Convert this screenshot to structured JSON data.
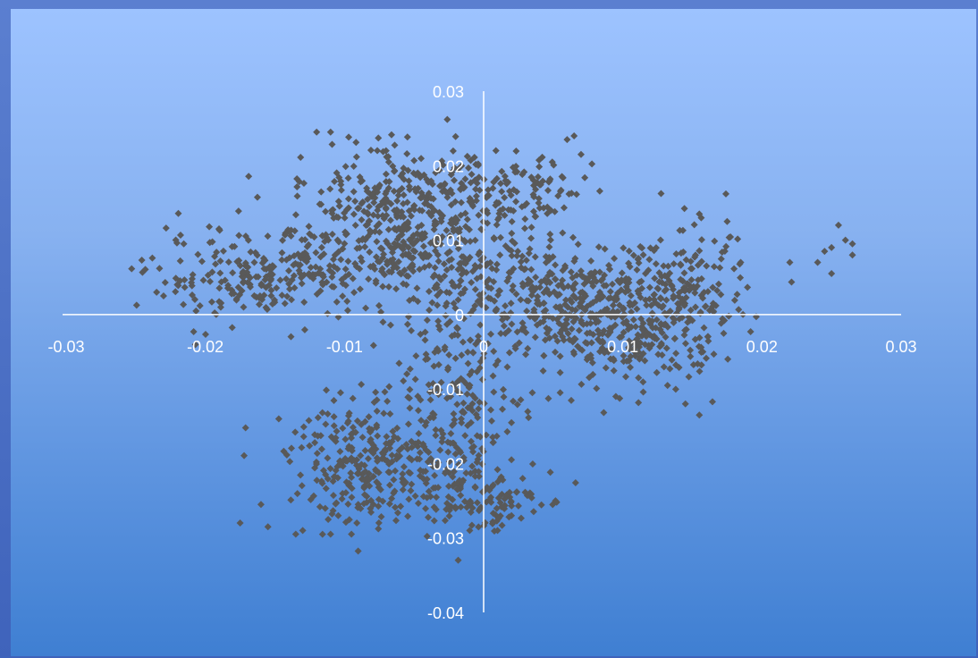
{
  "chart_data": {
    "type": "scatter",
    "title": "",
    "xlabel": "",
    "ylabel": "",
    "xlim": [
      -0.03,
      0.03
    ],
    "ylim": [
      -0.04,
      0.03
    ],
    "x_ticks": [
      "-0.03",
      "-0.02",
      "-0.01",
      "0",
      "0.01",
      "0.02",
      "0.03"
    ],
    "y_ticks": [
      "0.03",
      "0.02",
      "0.01",
      "0",
      "-0.01",
      "-0.02",
      "-0.03",
      "-0.04"
    ],
    "grid": false,
    "legend": "none",
    "marker_color": "#595959",
    "axis_color": "#ffffff",
    "clusters": [
      {
        "cx": -0.006,
        "cy": 0.012,
        "sx": 0.004,
        "sy": 0.004,
        "n": 330
      },
      {
        "cx": -0.006,
        "cy": 0.018,
        "sx": 0.003,
        "sy": 0.0035,
        "n": 80
      },
      {
        "cx": -0.016,
        "cy": 0.005,
        "sx": 0.004,
        "sy": 0.003,
        "n": 230
      },
      {
        "cx": 0.006,
        "cy": 0.002,
        "sx": 0.004,
        "sy": 0.004,
        "n": 330
      },
      {
        "cx": 0.011,
        "cy": -0.002,
        "sx": 0.003,
        "sy": 0.004,
        "n": 230
      },
      {
        "cx": 0.015,
        "cy": 0.003,
        "sx": 0.002,
        "sy": 0.004,
        "n": 120
      },
      {
        "cx": 0.002,
        "cy": 0.016,
        "sx": 0.003,
        "sy": 0.003,
        "n": 110
      },
      {
        "cx": -0.008,
        "cy": -0.02,
        "sx": 0.003,
        "sy": 0.004,
        "n": 280
      },
      {
        "cx": -0.002,
        "cy": -0.013,
        "sx": 0.0025,
        "sy": 0.007,
        "n": 220
      },
      {
        "cx": 0.0,
        "cy": -0.025,
        "sx": 0.002,
        "sy": 0.002,
        "n": 80
      },
      {
        "cx": -0.003,
        "cy": 0.005,
        "sx": 0.003,
        "sy": 0.004,
        "n": 120
      }
    ],
    "extra_points": [
      [
        -0.023,
        0.0025
      ],
      [
        -0.0235,
        0.003
      ],
      [
        -0.012,
        0.0245
      ],
      [
        -0.011,
        0.0245
      ],
      [
        0.006,
        0.0235
      ],
      [
        0.0065,
        0.024
      ],
      [
        0.007,
        0.0215
      ],
      [
        0.022,
        0.007
      ],
      [
        0.024,
        0.007
      ],
      [
        0.025,
        0.0055
      ],
      [
        0.025,
        0.009
      ],
      [
        0.0255,
        0.012
      ],
      [
        0.026,
        0.01
      ],
      [
        0.0265,
        0.0095
      ],
      [
        0.0265,
        0.008
      ],
      [
        0.0245,
        0.0085
      ],
      [
        0.0155,
        0.0135
      ],
      [
        0.0175,
        0.0125
      ],
      [
        0.0155,
        -0.0135
      ],
      [
        0.0145,
        -0.012
      ],
      [
        -0.0175,
        -0.028
      ],
      [
        -0.016,
        -0.0255
      ],
      [
        -0.0155,
        -0.0285
      ],
      [
        -0.0135,
        -0.0295
      ],
      [
        -0.013,
        -0.029
      ],
      [
        -0.011,
        -0.0295
      ],
      [
        -0.0095,
        -0.0295
      ],
      [
        0.002,
        -0.027
      ],
      [
        0.002,
        -0.0195
      ],
      [
        0.001,
        -0.029
      ],
      [
        -0.001,
        -0.029
      ],
      [
        0.0035,
        -0.0105
      ],
      [
        0.0095,
        -0.011
      ],
      [
        0.0055,
        -0.0105
      ]
    ]
  }
}
